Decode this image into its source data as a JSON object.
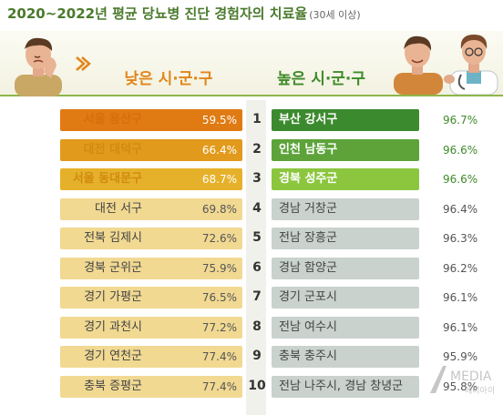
{
  "title": {
    "main": "2020~2022년 평균 당뇨병 진단 경험자의 치료율",
    "sub": "(30세 이상)"
  },
  "headers": {
    "low": "낮은 시·군·구",
    "high": "높은 시·군·구"
  },
  "icons": {
    "low_person": "frustrated-man-icon",
    "high_person": "man-with-doctor-icon",
    "arrows": "double-arrow-icon"
  },
  "colors": {
    "low_top": [
      "#e07a12",
      "#e29a1c",
      "#e6b12a"
    ],
    "low_rest": "#f1d992",
    "high_top": [
      "#3c8a2e",
      "#5da33a",
      "#8cc63f"
    ],
    "high_rest": "#c9d2cd",
    "title": "#4a7a2c"
  },
  "watermark": {
    "text": "MEDIA",
    "sub": "메디아이"
  },
  "chart_data": {
    "type": "bar",
    "title": "2020~2022년 평균 당뇨병 진단 경험자의 치료율",
    "subtitle": "(30세 이상)",
    "ranks": [
      "1",
      "2",
      "3",
      "4",
      "5",
      "6",
      "7",
      "8",
      "9",
      "10"
    ],
    "series": [
      {
        "name": "낮은 시·군·구",
        "categories": [
          "서울 용산구",
          "대전 대덕구",
          "서울 동대문구",
          "대전 서구",
          "전북 김제시",
          "경북 군위군",
          "경기 가평군",
          "경기 과천시",
          "경기 연천군",
          "충북 증평군"
        ],
        "values": [
          59.5,
          66.4,
          68.7,
          69.8,
          72.6,
          75.9,
          76.5,
          77.2,
          77.4,
          77.4
        ],
        "labels": [
          "59.5%",
          "66.4%",
          "68.7%",
          "69.8%",
          "72.6%",
          "75.9%",
          "76.5%",
          "77.2%",
          "77.4%",
          "77.4%"
        ]
      },
      {
        "name": "높은 시·군·구",
        "categories": [
          "부산 강서구",
          "인천 남동구",
          "경북 성주군",
          "경남 거창군",
          "전남 장흥군",
          "경남 함양군",
          "경기 군포시",
          "전남 여수시",
          "충북 충주시",
          "전남 나주시, 경남 창녕군"
        ],
        "values": [
          96.7,
          96.6,
          96.6,
          96.4,
          96.3,
          96.2,
          96.1,
          96.1,
          95.9,
          95.8
        ],
        "labels": [
          "96.7%",
          "96.6%",
          "96.6%",
          "96.4%",
          "96.3%",
          "96.2%",
          "96.1%",
          "96.1%",
          "95.9%",
          "95.8%"
        ]
      }
    ]
  }
}
